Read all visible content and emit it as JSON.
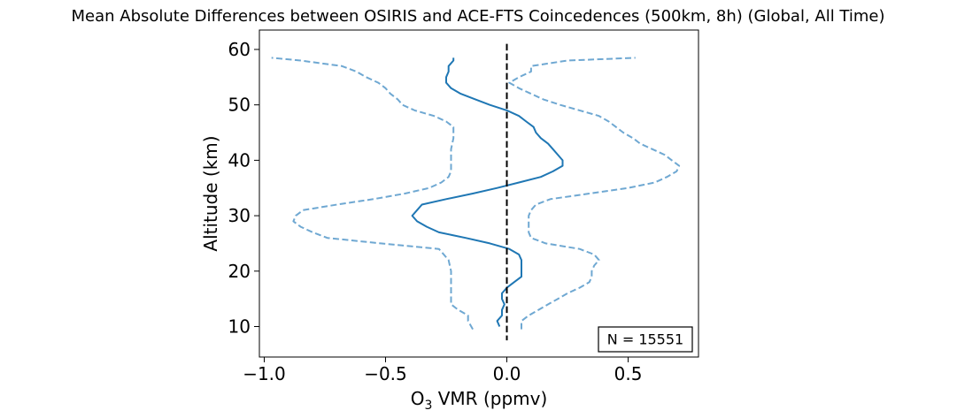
{
  "chart_data": {
    "type": "line",
    "title": "Mean Absolute Differences between OSIRIS and ACE-FTS Coincedences (500km, 8h) (Global, All Time)",
    "xlabel_main": "O",
    "xlabel_sub": "3",
    "xlabel_rest": " VMR (ppmv)",
    "ylabel": "Altitude (km)",
    "xlim": [
      -1.02,
      0.79
    ],
    "ylim": [
      4.5,
      63.5
    ],
    "xticks": [
      -1.0,
      -0.5,
      0.0,
      0.5
    ],
    "xtick_labels": [
      "−1.0",
      "−0.5",
      "0.0",
      "0.5"
    ],
    "yticks": [
      10,
      20,
      30,
      40,
      50,
      60
    ],
    "ytick_labels": [
      "10",
      "20",
      "30",
      "40",
      "50",
      "60"
    ],
    "grid": false,
    "annotation": "N = 15551",
    "reference_line": {
      "x": 0.0,
      "y_range": [
        7.5,
        61
      ],
      "style": "dashed",
      "color": "#000000"
    },
    "series": [
      {
        "role": "mean",
        "color": "#1f77b4",
        "style": "solid",
        "points": [
          [
            -0.03,
            10
          ],
          [
            -0.04,
            11
          ],
          [
            -0.02,
            12
          ],
          [
            -0.02,
            13
          ],
          [
            -0.01,
            14
          ],
          [
            -0.02,
            15
          ],
          [
            -0.02,
            16
          ],
          [
            0.0,
            17
          ],
          [
            0.03,
            18
          ],
          [
            0.06,
            19
          ],
          [
            0.06,
            20
          ],
          [
            0.06,
            21
          ],
          [
            0.06,
            22
          ],
          [
            0.05,
            23
          ],
          [
            0.01,
            24
          ],
          [
            -0.07,
            25
          ],
          [
            -0.17,
            26
          ],
          [
            -0.28,
            27
          ],
          [
            -0.33,
            28
          ],
          [
            -0.37,
            29
          ],
          [
            -0.39,
            30
          ],
          [
            -0.37,
            31
          ],
          [
            -0.35,
            32
          ],
          [
            -0.25,
            33
          ],
          [
            -0.14,
            34
          ],
          [
            -0.04,
            35
          ],
          [
            0.05,
            36
          ],
          [
            0.14,
            37
          ],
          [
            0.19,
            38
          ],
          [
            0.23,
            39
          ],
          [
            0.23,
            40
          ],
          [
            0.21,
            41
          ],
          [
            0.19,
            42
          ],
          [
            0.17,
            43
          ],
          [
            0.14,
            44
          ],
          [
            0.12,
            45
          ],
          [
            0.11,
            46
          ],
          [
            0.08,
            47
          ],
          [
            0.05,
            48
          ],
          [
            0.0,
            49
          ],
          [
            -0.07,
            50
          ],
          [
            -0.13,
            51
          ],
          [
            -0.19,
            52
          ],
          [
            -0.23,
            53
          ],
          [
            -0.25,
            54
          ],
          [
            -0.25,
            55
          ],
          [
            -0.24,
            56
          ],
          [
            -0.24,
            57
          ],
          [
            -0.22,
            58
          ],
          [
            -0.22,
            58.5
          ]
        ]
      },
      {
        "role": "lower-bound",
        "color": "#6fa8d2",
        "style": "dashed",
        "points": [
          [
            -0.14,
            9.5
          ],
          [
            -0.16,
            11
          ],
          [
            -0.16,
            12
          ],
          [
            -0.2,
            13
          ],
          [
            -0.23,
            14
          ],
          [
            -0.23,
            16
          ],
          [
            -0.23,
            18
          ],
          [
            -0.23,
            20
          ],
          [
            -0.24,
            22
          ],
          [
            -0.26,
            23
          ],
          [
            -0.28,
            24
          ],
          [
            -0.52,
            25
          ],
          [
            -0.74,
            26
          ],
          [
            -0.8,
            27
          ],
          [
            -0.85,
            28
          ],
          [
            -0.88,
            29
          ],
          [
            -0.87,
            30
          ],
          [
            -0.84,
            31
          ],
          [
            -0.7,
            32
          ],
          [
            -0.55,
            33
          ],
          [
            -0.42,
            34
          ],
          [
            -0.32,
            35
          ],
          [
            -0.27,
            36
          ],
          [
            -0.24,
            37
          ],
          [
            -0.23,
            38
          ],
          [
            -0.23,
            40
          ],
          [
            -0.23,
            42
          ],
          [
            -0.22,
            44
          ],
          [
            -0.22,
            46
          ],
          [
            -0.25,
            47
          ],
          [
            -0.3,
            48
          ],
          [
            -0.38,
            49
          ],
          [
            -0.43,
            50
          ],
          [
            -0.45,
            51
          ],
          [
            -0.48,
            52
          ],
          [
            -0.5,
            53
          ],
          [
            -0.53,
            54
          ],
          [
            -0.58,
            55
          ],
          [
            -0.62,
            56
          ],
          [
            -0.68,
            57
          ],
          [
            -0.85,
            58
          ],
          [
            -0.97,
            58.5
          ]
        ]
      },
      {
        "role": "upper-bound",
        "color": "#6fa8d2",
        "style": "dashed",
        "points": [
          [
            0.06,
            9.5
          ],
          [
            0.06,
            11
          ],
          [
            0.09,
            12
          ],
          [
            0.13,
            13
          ],
          [
            0.17,
            14
          ],
          [
            0.21,
            15
          ],
          [
            0.25,
            16
          ],
          [
            0.3,
            17
          ],
          [
            0.34,
            18
          ],
          [
            0.35,
            19
          ],
          [
            0.35,
            20
          ],
          [
            0.36,
            21
          ],
          [
            0.38,
            22
          ],
          [
            0.36,
            23
          ],
          [
            0.3,
            24
          ],
          [
            0.16,
            25
          ],
          [
            0.1,
            26
          ],
          [
            0.09,
            27
          ],
          [
            0.09,
            28
          ],
          [
            0.09,
            29
          ],
          [
            0.09,
            30
          ],
          [
            0.1,
            31
          ],
          [
            0.12,
            32
          ],
          [
            0.18,
            33
          ],
          [
            0.34,
            34
          ],
          [
            0.5,
            35
          ],
          [
            0.61,
            36
          ],
          [
            0.66,
            37
          ],
          [
            0.7,
            38
          ],
          [
            0.71,
            39
          ],
          [
            0.68,
            40
          ],
          [
            0.65,
            41
          ],
          [
            0.6,
            42
          ],
          [
            0.55,
            43
          ],
          [
            0.52,
            44
          ],
          [
            0.48,
            45
          ],
          [
            0.45,
            46
          ],
          [
            0.42,
            47
          ],
          [
            0.38,
            48
          ],
          [
            0.3,
            49
          ],
          [
            0.22,
            50
          ],
          [
            0.15,
            51
          ],
          [
            0.1,
            52
          ],
          [
            0.05,
            53
          ],
          [
            0.01,
            54
          ],
          [
            0.05,
            55
          ],
          [
            0.1,
            56
          ],
          [
            0.1,
            57
          ],
          [
            0.25,
            58
          ],
          [
            0.53,
            58.5
          ]
        ]
      }
    ]
  }
}
